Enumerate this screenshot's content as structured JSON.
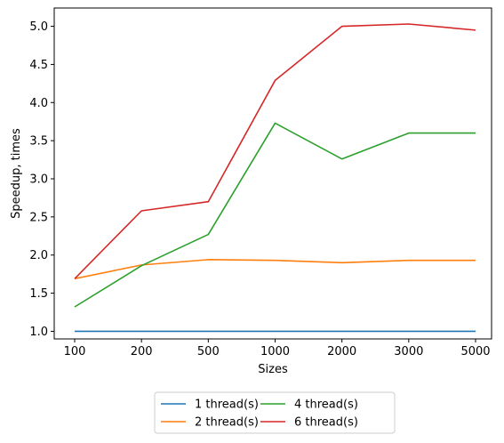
{
  "chart_data": {
    "type": "line",
    "title": "",
    "xlabel": "Sizes",
    "ylabel": "Speedup, times",
    "categories": [
      "100",
      "200",
      "500",
      "1000",
      "2000",
      "3000",
      "5000"
    ],
    "ylim": [
      0.9,
      5.24
    ],
    "yticks": [
      "1.0",
      "1.5",
      "2.0",
      "2.5",
      "3.0",
      "3.5",
      "4.0",
      "4.5",
      "5.0"
    ],
    "grid": false,
    "legend_position": "bottom-center",
    "series": [
      {
        "name": "1 thread(s)",
        "color": "#1f77b4",
        "values": [
          1.0,
          1.0,
          1.0,
          1.0,
          1.0,
          1.0,
          1.0
        ]
      },
      {
        "name": "2 thread(s)",
        "color": "#ff7f0e",
        "values": [
          1.69,
          1.87,
          1.94,
          1.93,
          1.9,
          1.93,
          1.93
        ]
      },
      {
        "name": "4 thread(s)",
        "color": "#2ca02c",
        "values": [
          1.32,
          1.86,
          2.27,
          3.73,
          3.26,
          3.6,
          3.6
        ]
      },
      {
        "name": "6 thread(s)",
        "color": "#d62728",
        "values": [
          1.69,
          2.58,
          2.7,
          4.29,
          5.0,
          5.03,
          4.95
        ]
      }
    ]
  }
}
